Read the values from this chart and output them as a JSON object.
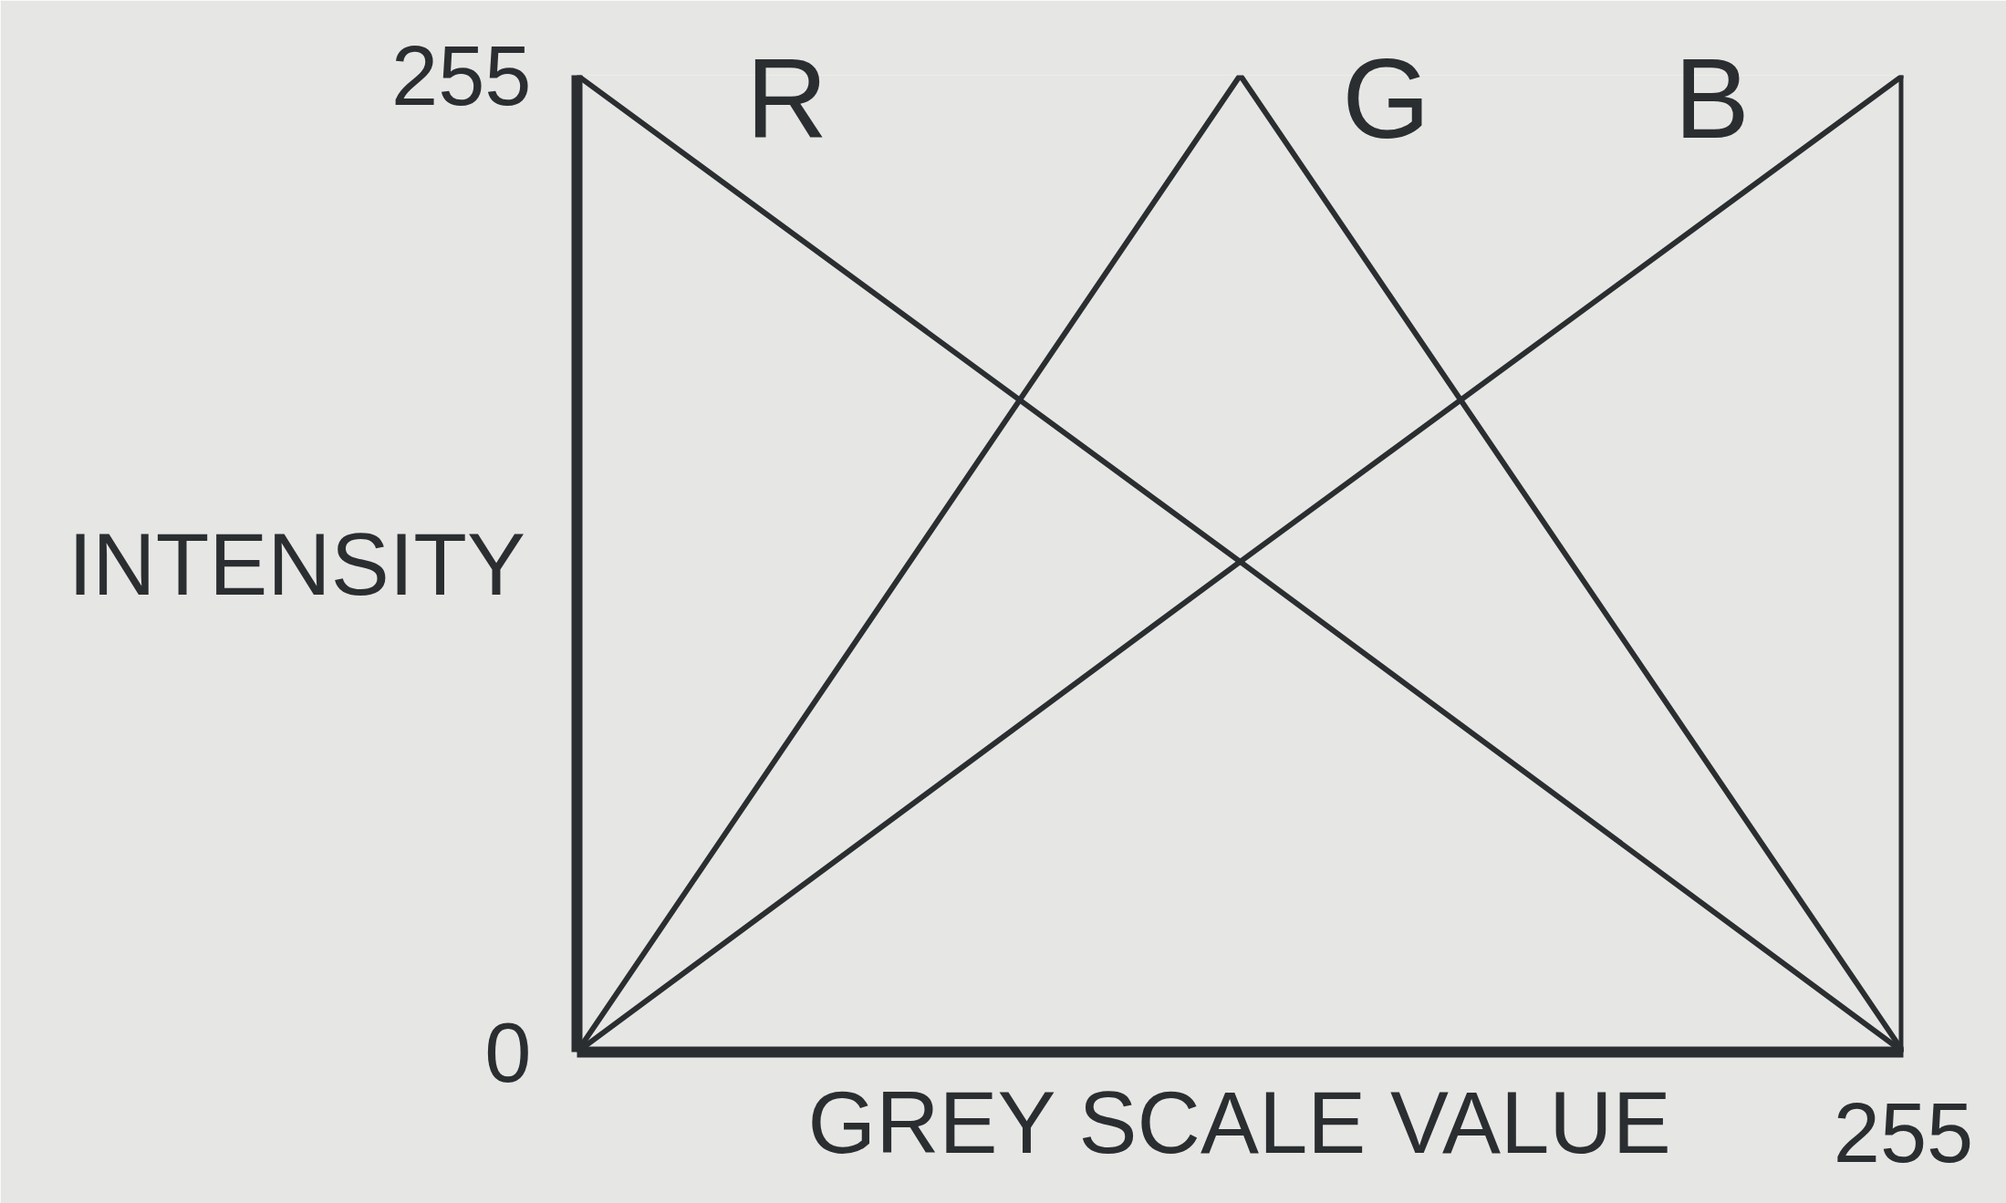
{
  "chart_data": {
    "type": "line",
    "xlabel": "GREY SCALE VALUE",
    "ylabel": "INTENSITY",
    "categories": [
      null,
      null,
      "255"
    ],
    "series": [
      {
        "name": "R",
        "color": "#2b2e30",
        "values": [
          255,
          128,
          0
        ]
      },
      {
        "name": "G",
        "color": "#2b2e30",
        "values": [
          0,
          255,
          0
        ]
      },
      {
        "name": "B",
        "color": "#2b2e30",
        "values": [
          0,
          128,
          255
        ]
      }
    ],
    "ylim": [
      0,
      255
    ],
    "yticks": [
      0,
      255
    ]
  }
}
